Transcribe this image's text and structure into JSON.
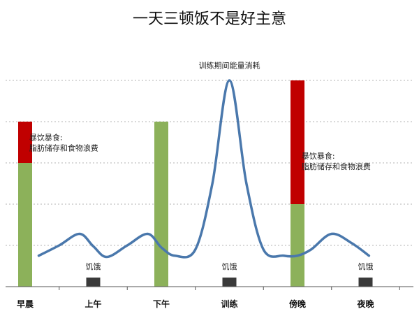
{
  "chart_data": {
    "type": "bar",
    "title": "一天三顿饭不是好主意",
    "categories": [
      "早晨",
      "上午",
      "下午",
      "训练",
      "傍晚",
      "夜晚"
    ],
    "ylim": [
      0,
      5
    ],
    "grid": true,
    "bar_series": [
      {
        "color": "#8cb15a",
        "values": [
          3,
          0,
          4,
          0,
          2,
          0
        ]
      },
      {
        "color": "#c00000",
        "values": [
          1,
          0,
          0,
          0,
          3,
          0
        ]
      },
      {
        "color": "#3a3a3a",
        "values": [
          0,
          0.22,
          0,
          0.22,
          0,
          0.22
        ]
      }
    ],
    "curve": {
      "color": "#4a78ac",
      "points": [
        [
          0.2,
          0.75
        ],
        [
          0.5,
          1.0
        ],
        [
          0.8,
          1.28
        ],
        [
          1.0,
          0.98
        ],
        [
          1.2,
          0.72
        ],
        [
          1.5,
          1.0
        ],
        [
          1.8,
          1.28
        ],
        [
          2.0,
          0.95
        ],
        [
          2.2,
          0.75
        ],
        [
          2.5,
          0.9
        ],
        [
          2.75,
          2.5
        ],
        [
          3.0,
          5.0
        ],
        [
          3.25,
          2.5
        ],
        [
          3.5,
          0.9
        ],
        [
          3.8,
          0.75
        ],
        [
          4.0,
          0.75
        ],
        [
          4.2,
          0.9
        ],
        [
          4.5,
          1.28
        ],
        [
          4.8,
          1.05
        ],
        [
          5.05,
          0.75
        ]
      ]
    },
    "annotations": [
      {
        "text": "训练期间能量消耗",
        "x": 3.0,
        "y": 5.3
      },
      {
        "text": "暴饮暴食:",
        "x": 0.06,
        "y": 3.55
      },
      {
        "text": "脂肪储存和食物浪费",
        "x": 0.06,
        "y": 3.3
      },
      {
        "text": "暴饮暴食:",
        "x": 4.06,
        "y": 3.1
      },
      {
        "text": "脂肪储存和食物浪费",
        "x": 4.06,
        "y": 2.85
      },
      {
        "text": "饥饿",
        "x": 1.0,
        "y": 0.42
      },
      {
        "text": "饥饿",
        "x": 3.0,
        "y": 0.42
      },
      {
        "text": "饥饿",
        "x": 5.0,
        "y": 0.42
      }
    ]
  }
}
